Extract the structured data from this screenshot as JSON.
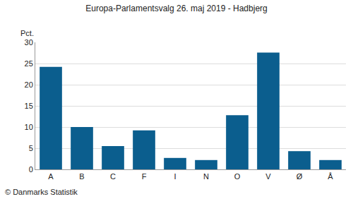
{
  "chart_data": {
    "type": "bar",
    "title": "Europa-Parlamentsvalg 26. maj 2019 - Hadbjerg",
    "ylabel": "Pct.",
    "categories": [
      "A",
      "B",
      "C",
      "F",
      "I",
      "N",
      "O",
      "V",
      "Ø",
      "Å"
    ],
    "values": [
      24.2,
      10.0,
      5.5,
      9.2,
      2.7,
      2.2,
      12.8,
      27.6,
      4.3,
      2.2
    ],
    "color": "#0b5e8e",
    "ylim": [
      0,
      30
    ],
    "yticks": [
      0,
      5,
      10,
      15,
      20,
      25,
      30
    ],
    "grid": true,
    "annotations": [
      "© Danmarks Statistik"
    ]
  }
}
